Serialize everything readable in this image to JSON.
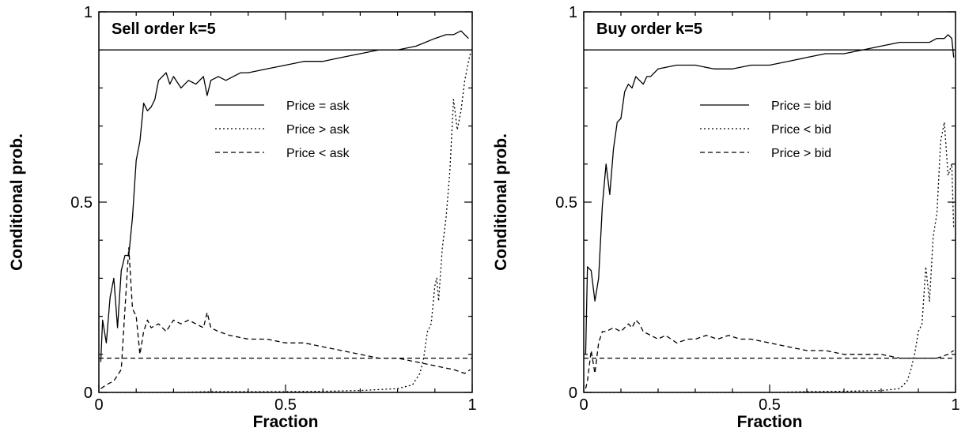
{
  "chart_data": [
    {
      "type": "line",
      "title": "Sell order k=5",
      "xlabel": "Fraction",
      "ylabel": "Conditional prob.",
      "xlim": [
        0,
        1
      ],
      "ylim": [
        0,
        1
      ],
      "xticks": [
        0,
        0.5,
        1
      ],
      "xtick_labels": [
        "0",
        "0.5",
        "1"
      ],
      "yticks": [
        0,
        0.5,
        1
      ],
      "ytick_labels": [
        "0",
        "0.5",
        "1"
      ],
      "grid": false,
      "legend_position": "center-right",
      "reference_lines": [
        {
          "y": 0.9,
          "style": "solid",
          "color": "#000000"
        },
        {
          "y": 0.09,
          "style": "dashed",
          "color": "#000000"
        }
      ],
      "series": [
        {
          "name": "Price = ask",
          "style": "solid",
          "color": "#000000",
          "x": [
            0.005,
            0.01,
            0.02,
            0.03,
            0.04,
            0.05,
            0.06,
            0.07,
            0.08,
            0.09,
            0.1,
            0.11,
            0.12,
            0.13,
            0.14,
            0.15,
            0.16,
            0.17,
            0.18,
            0.19,
            0.2,
            0.22,
            0.24,
            0.26,
            0.28,
            0.29,
            0.3,
            0.32,
            0.34,
            0.36,
            0.38,
            0.4,
            0.45,
            0.5,
            0.55,
            0.6,
            0.65,
            0.7,
            0.75,
            0.8,
            0.85,
            0.9,
            0.93,
            0.95,
            0.97,
            0.98,
            0.99
          ],
          "y": [
            0.08,
            0.19,
            0.13,
            0.25,
            0.3,
            0.17,
            0.32,
            0.36,
            0.36,
            0.46,
            0.61,
            0.66,
            0.76,
            0.74,
            0.75,
            0.77,
            0.82,
            0.83,
            0.84,
            0.81,
            0.83,
            0.8,
            0.82,
            0.81,
            0.83,
            0.78,
            0.82,
            0.83,
            0.82,
            0.83,
            0.84,
            0.84,
            0.85,
            0.86,
            0.87,
            0.87,
            0.88,
            0.89,
            0.9,
            0.9,
            0.91,
            0.93,
            0.94,
            0.94,
            0.95,
            0.94,
            0.93
          ]
        },
        {
          "name": "Price > ask",
          "style": "dotted",
          "color": "#000000",
          "x": [
            0.005,
            0.1,
            0.2,
            0.3,
            0.4,
            0.5,
            0.6,
            0.7,
            0.8,
            0.84,
            0.86,
            0.87,
            0.88,
            0.89,
            0.9,
            0.905,
            0.91,
            0.92,
            0.93,
            0.94,
            0.95,
            0.96,
            0.97,
            0.98,
            0.99,
            0.995
          ],
          "y": [
            0.0,
            0.0,
            0.0,
            0.002,
            0.002,
            0.002,
            0.003,
            0.005,
            0.01,
            0.02,
            0.05,
            0.09,
            0.16,
            0.18,
            0.28,
            0.3,
            0.24,
            0.38,
            0.46,
            0.58,
            0.77,
            0.69,
            0.74,
            0.82,
            0.87,
            0.89
          ]
        },
        {
          "name": "Price < ask",
          "style": "dashed",
          "color": "#000000",
          "x": [
            0.005,
            0.02,
            0.04,
            0.06,
            0.07,
            0.08,
            0.09,
            0.1,
            0.11,
            0.12,
            0.13,
            0.14,
            0.16,
            0.18,
            0.2,
            0.22,
            0.24,
            0.26,
            0.28,
            0.29,
            0.3,
            0.32,
            0.35,
            0.4,
            0.45,
            0.5,
            0.55,
            0.6,
            0.65,
            0.7,
            0.75,
            0.8,
            0.85,
            0.9,
            0.95,
            0.98,
            0.995
          ],
          "y": [
            0.01,
            0.02,
            0.03,
            0.06,
            0.22,
            0.38,
            0.22,
            0.2,
            0.1,
            0.16,
            0.19,
            0.17,
            0.18,
            0.16,
            0.19,
            0.18,
            0.19,
            0.18,
            0.17,
            0.21,
            0.17,
            0.16,
            0.15,
            0.14,
            0.14,
            0.13,
            0.13,
            0.12,
            0.11,
            0.1,
            0.09,
            0.09,
            0.08,
            0.07,
            0.06,
            0.05,
            0.06
          ]
        }
      ]
    },
    {
      "type": "line",
      "title": "Buy order k=5",
      "xlabel": "Fraction",
      "ylabel": "Conditional prob.",
      "xlim": [
        0,
        1
      ],
      "ylim": [
        0,
        1
      ],
      "xticks": [
        0,
        0.5,
        1
      ],
      "xtick_labels": [
        "0",
        "0.5",
        "1"
      ],
      "yticks": [
        0,
        0.5,
        1
      ],
      "ytick_labels": [
        "0",
        "0.5",
        "1"
      ],
      "grid": false,
      "legend_position": "center-right",
      "reference_lines": [
        {
          "y": 0.9,
          "style": "solid",
          "color": "#000000"
        },
        {
          "y": 0.09,
          "style": "dashed",
          "color": "#000000"
        }
      ],
      "series": [
        {
          "name": "Price = bid",
          "style": "solid",
          "color": "#000000",
          "x": [
            0.005,
            0.01,
            0.02,
            0.03,
            0.04,
            0.05,
            0.06,
            0.07,
            0.08,
            0.09,
            0.1,
            0.11,
            0.12,
            0.13,
            0.14,
            0.15,
            0.16,
            0.17,
            0.18,
            0.19,
            0.2,
            0.25,
            0.3,
            0.35,
            0.4,
            0.45,
            0.5,
            0.55,
            0.6,
            0.65,
            0.7,
            0.75,
            0.8,
            0.85,
            0.9,
            0.93,
            0.95,
            0.97,
            0.98,
            0.99,
            0.995
          ],
          "y": [
            0.1,
            0.33,
            0.32,
            0.24,
            0.3,
            0.49,
            0.6,
            0.52,
            0.64,
            0.71,
            0.72,
            0.79,
            0.81,
            0.8,
            0.83,
            0.82,
            0.81,
            0.83,
            0.83,
            0.84,
            0.85,
            0.86,
            0.86,
            0.85,
            0.85,
            0.86,
            0.86,
            0.87,
            0.88,
            0.89,
            0.89,
            0.9,
            0.91,
            0.92,
            0.92,
            0.92,
            0.93,
            0.93,
            0.94,
            0.93,
            0.88
          ]
        },
        {
          "name": "Price < bid",
          "style": "dotted",
          "color": "#000000",
          "x": [
            0.005,
            0.1,
            0.2,
            0.3,
            0.4,
            0.5,
            0.6,
            0.7,
            0.8,
            0.85,
            0.87,
            0.88,
            0.89,
            0.9,
            0.91,
            0.92,
            0.93,
            0.94,
            0.95,
            0.96,
            0.97,
            0.98,
            0.99,
            0.995
          ],
          "y": [
            0.0,
            0.0,
            0.0,
            0.0,
            0.0,
            0.0,
            0.002,
            0.003,
            0.005,
            0.01,
            0.03,
            0.06,
            0.1,
            0.16,
            0.18,
            0.33,
            0.24,
            0.41,
            0.47,
            0.66,
            0.71,
            0.57,
            0.6,
            0.43
          ]
        },
        {
          "name": "Price > bid",
          "style": "dashed",
          "color": "#000000",
          "x": [
            0.005,
            0.01,
            0.02,
            0.03,
            0.04,
            0.05,
            0.06,
            0.08,
            0.1,
            0.12,
            0.13,
            0.14,
            0.15,
            0.16,
            0.18,
            0.2,
            0.22,
            0.25,
            0.28,
            0.3,
            0.33,
            0.36,
            0.39,
            0.42,
            0.45,
            0.5,
            0.55,
            0.6,
            0.65,
            0.7,
            0.75,
            0.8,
            0.85,
            0.9,
            0.95,
            0.98,
            0.995
          ],
          "y": [
            0.01,
            0.03,
            0.11,
            0.05,
            0.13,
            0.16,
            0.16,
            0.17,
            0.16,
            0.18,
            0.17,
            0.19,
            0.18,
            0.16,
            0.15,
            0.14,
            0.15,
            0.13,
            0.14,
            0.14,
            0.15,
            0.14,
            0.15,
            0.14,
            0.14,
            0.13,
            0.12,
            0.11,
            0.11,
            0.1,
            0.1,
            0.1,
            0.09,
            0.09,
            0.09,
            0.1,
            0.11
          ]
        }
      ]
    }
  ]
}
